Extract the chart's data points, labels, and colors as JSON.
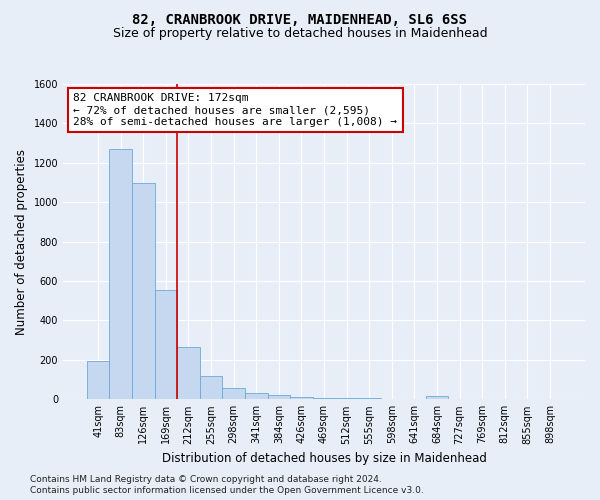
{
  "title": "82, CRANBROOK DRIVE, MAIDENHEAD, SL6 6SS",
  "subtitle": "Size of property relative to detached houses in Maidenhead",
  "xlabel": "Distribution of detached houses by size in Maidenhead",
  "ylabel": "Number of detached properties",
  "footnote1": "Contains HM Land Registry data © Crown copyright and database right 2024.",
  "footnote2": "Contains public sector information licensed under the Open Government Licence v3.0.",
  "categories": [
    "41sqm",
    "83sqm",
    "126sqm",
    "169sqm",
    "212sqm",
    "255sqm",
    "298sqm",
    "341sqm",
    "384sqm",
    "426sqm",
    "469sqm",
    "512sqm",
    "555sqm",
    "598sqm",
    "641sqm",
    "684sqm",
    "727sqm",
    "769sqm",
    "812sqm",
    "855sqm",
    "898sqm"
  ],
  "values": [
    195,
    1270,
    1100,
    555,
    265,
    120,
    55,
    30,
    20,
    10,
    5,
    5,
    5,
    0,
    0,
    15,
    0,
    0,
    0,
    0,
    0
  ],
  "bar_color": "#c5d8ef",
  "bar_edge_color": "#6aaad4",
  "vline_x_index": 3,
  "vline_color": "#cc0000",
  "annotation_line1": "82 CRANBROOK DRIVE: 172sqm",
  "annotation_line2": "← 72% of detached houses are smaller (2,595)",
  "annotation_line3": "28% of semi-detached houses are larger (1,008) →",
  "annotation_box_facecolor": "#ffffff",
  "annotation_box_edgecolor": "#cc0000",
  "ylim": [
    0,
    1600
  ],
  "yticks": [
    0,
    200,
    400,
    600,
    800,
    1000,
    1200,
    1400,
    1600
  ],
  "bg_color": "#e8eef8",
  "plot_bg_color": "#e8eef8",
  "grid_color": "#ffffff",
  "title_fontsize": 10,
  "subtitle_fontsize": 9,
  "axis_label_fontsize": 8.5,
  "tick_fontsize": 7,
  "annotation_fontsize": 8,
  "footnote_fontsize": 6.5
}
